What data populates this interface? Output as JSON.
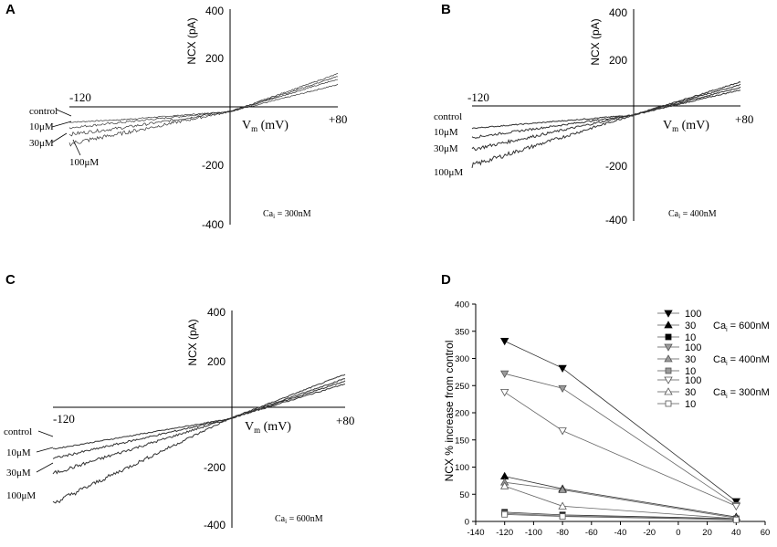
{
  "panels": {
    "A": {
      "letter": "A",
      "y_axis_label": "NCX (pA)",
      "y_ticks": [
        "400",
        "200",
        "-200",
        "-400"
      ],
      "x_left_label": "-120",
      "x_right_label": "+80",
      "x_axis_label_main": "V",
      "x_axis_label_sub": "m",
      "x_axis_label_unit": " (mV)",
      "legend": [
        "control",
        "10μM",
        "30μM",
        "100μM"
      ],
      "cai_prefix": "Ca",
      "cai_sub": "i",
      "cai_value": " = 300nM"
    },
    "B": {
      "letter": "B",
      "y_axis_label": "NCX (pA)",
      "y_ticks": [
        "400",
        "200",
        "-200",
        "-400"
      ],
      "x_left_label": "-120",
      "x_right_label": "+80",
      "x_axis_label_main": "V",
      "x_axis_label_sub": "m",
      "x_axis_label_unit": " (mV)",
      "legend": [
        "control",
        "10μM",
        "30μM",
        "100μM"
      ],
      "cai_prefix": "Ca",
      "cai_sub": "i",
      "cai_value": " = 400nM"
    },
    "C": {
      "letter": "C",
      "y_axis_label": "NCX (pA)",
      "y_ticks": [
        "400",
        "200",
        "-200",
        "-400"
      ],
      "x_left_label": "-120",
      "x_right_label": "+80",
      "x_axis_label_main": "V",
      "x_axis_label_sub": "m",
      "x_axis_label_unit": " (mV)",
      "legend": [
        "control",
        "10μM",
        "30μM",
        "100μM"
      ],
      "cai_prefix": "Ca",
      "cai_sub": "i",
      "cai_value": " = 600nM"
    },
    "D": {
      "letter": "D",
      "y_axis_label": "NCX % increase from control",
      "legend_groups": [
        {
          "cai_prefix": "Ca",
          "cai_sub": "i",
          "cai_value": " = 600nM",
          "labels": [
            "100",
            "30",
            "10"
          ]
        },
        {
          "cai_prefix": "Ca",
          "cai_sub": "i",
          "cai_value": " = 400nM",
          "labels": [
            "100",
            "30",
            "10"
          ]
        },
        {
          "cai_prefix": "Ca",
          "cai_sub": "i",
          "cai_value": " = 300nM",
          "labels": [
            "100",
            "30",
            "10"
          ]
        }
      ]
    }
  },
  "chart_data": [
    {
      "panel": "A",
      "type": "line",
      "xlim": [
        -120,
        80
      ],
      "ylim": [
        -400,
        400
      ],
      "series": [
        {
          "name": "control",
          "x": [
            -120,
            -80,
            0,
            80
          ],
          "y": [
            -20,
            -10,
            20,
            120
          ]
        },
        {
          "name": "10μM",
          "x": [
            -120,
            -80,
            0,
            80
          ],
          "y": [
            -40,
            -20,
            20,
            140
          ]
        },
        {
          "name": "30μM",
          "x": [
            -120,
            -80,
            0,
            80
          ],
          "y": [
            -65,
            -40,
            20,
            150
          ]
        },
        {
          "name": "100μM",
          "x": [
            -120,
            -80,
            0,
            80
          ],
          "y": [
            -100,
            -60,
            20,
            160
          ]
        }
      ]
    },
    {
      "panel": "B",
      "type": "line",
      "xlim": [
        -120,
        80
      ],
      "ylim": [
        -400,
        400
      ],
      "series": [
        {
          "name": "control",
          "x": [
            -120,
            0,
            80
          ],
          "y": [
            -50,
            0,
            95
          ]
        },
        {
          "name": "10μM",
          "x": [
            -120,
            0,
            80
          ],
          "y": [
            -85,
            0,
            105
          ]
        },
        {
          "name": "30μM",
          "x": [
            -120,
            0,
            80
          ],
          "y": [
            -130,
            0,
            115
          ]
        },
        {
          "name": "100μM",
          "x": [
            -120,
            0,
            80
          ],
          "y": [
            -190,
            0,
            125
          ]
        }
      ]
    },
    {
      "panel": "C",
      "type": "line",
      "xlim": [
        -120,
        80
      ],
      "ylim": [
        -400,
        400
      ],
      "series": [
        {
          "name": "control",
          "x": [
            -120,
            0,
            80
          ],
          "y": [
            -110,
            0,
            130
          ]
        },
        {
          "name": "10μM",
          "x": [
            -120,
            0,
            80
          ],
          "y": [
            -145,
            0,
            140
          ]
        },
        {
          "name": "30μM",
          "x": [
            -120,
            0,
            80
          ],
          "y": [
            -200,
            0,
            150
          ]
        },
        {
          "name": "100μM",
          "x": [
            -120,
            0,
            80
          ],
          "y": [
            -310,
            0,
            165
          ]
        }
      ]
    },
    {
      "panel": "D",
      "type": "line",
      "title": "",
      "xlabel": "",
      "ylabel": "NCX % increase from control",
      "xlim": [
        -140,
        60
      ],
      "ylim": [
        0,
        400
      ],
      "x_ticks": [
        -140,
        -120,
        -100,
        -80,
        -60,
        -40,
        -20,
        0,
        20,
        40,
        60
      ],
      "y_ticks": [
        0,
        50,
        100,
        150,
        200,
        250,
        300,
        350,
        400
      ],
      "series": [
        {
          "name": "100",
          "group": "Cai = 600nM",
          "marker": "triangle-down",
          "fill": "#000000",
          "x": [
            -120,
            -80,
            40
          ],
          "y": [
            332,
            282,
            37
          ]
        },
        {
          "name": "30",
          "group": "Cai = 600nM",
          "marker": "triangle-up",
          "fill": "#000000",
          "x": [
            -120,
            -80,
            40
          ],
          "y": [
            83,
            60,
            8
          ]
        },
        {
          "name": "10",
          "group": "Cai = 600nM",
          "marker": "square",
          "fill": "#000000",
          "x": [
            -120,
            -80,
            40
          ],
          "y": [
            17,
            12,
            5
          ]
        },
        {
          "name": "100",
          "group": "Cai = 400nM",
          "marker": "triangle-down",
          "fill": "#9a9a9a",
          "x": [
            -120,
            -80,
            40
          ],
          "y": [
            272,
            245,
            30
          ]
        },
        {
          "name": "30",
          "group": "Cai = 400nM",
          "marker": "triangle-up",
          "fill": "#9a9a9a",
          "x": [
            -120,
            -80,
            40
          ],
          "y": [
            72,
            58,
            6
          ]
        },
        {
          "name": "10",
          "group": "Cai = 400nM",
          "marker": "square",
          "fill": "#9a9a9a",
          "x": [
            -120,
            -80,
            40
          ],
          "y": [
            15,
            10,
            4
          ]
        },
        {
          "name": "100",
          "group": "Cai = 300nM",
          "marker": "triangle-down",
          "fill": "#ffffff",
          "x": [
            -120,
            -80,
            40
          ],
          "y": [
            238,
            167,
            28
          ]
        },
        {
          "name": "30",
          "group": "Cai = 300nM",
          "marker": "triangle-up",
          "fill": "#ffffff",
          "x": [
            -120,
            -80,
            40
          ],
          "y": [
            65,
            28,
            5
          ]
        },
        {
          "name": "10",
          "group": "Cai = 300nM",
          "marker": "square",
          "fill": "#ffffff",
          "x": [
            -120,
            -80,
            40
          ],
          "y": [
            13,
            9,
            3
          ]
        }
      ]
    }
  ]
}
